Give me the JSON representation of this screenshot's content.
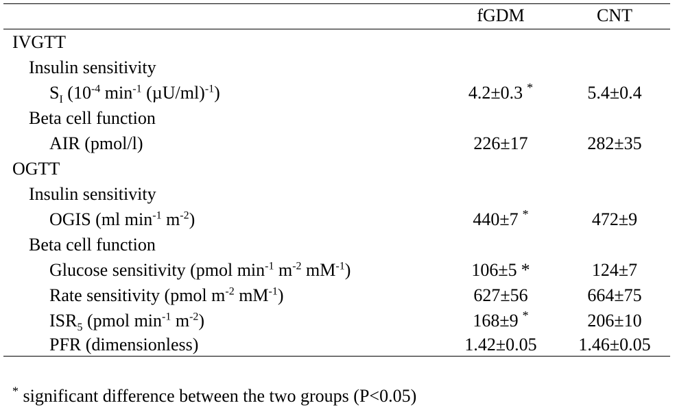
{
  "columns": {
    "col1": "fGDM",
    "col2": "CNT"
  },
  "rows": {
    "ivgtt": {
      "label": "IVGTT"
    },
    "ivgtt_ins": {
      "label": "Insulin sensitivity"
    },
    "si": {
      "label_main": "S",
      "label_sub": "I",
      "label_a": " (10",
      "label_sup1": "-4",
      "label_b": " min",
      "label_sup2": "-1",
      "label_c": " (µU/ml)",
      "label_sup3": "-1",
      "label_d": ")",
      "v1": "4.2±0.3",
      "mark1": "*",
      "v2": "5.4±0.4"
    },
    "ivgtt_beta": {
      "label": "Beta cell function"
    },
    "air": {
      "label": "AIR (pmol/l)",
      "v1": "226±17",
      "v2": "282±35"
    },
    "ogtt": {
      "label": "OGTT"
    },
    "ogtt_ins": {
      "label": "Insulin sensitivity"
    },
    "ogis": {
      "label_a": "OGIS (ml min",
      "label_sup1": "-1",
      "label_b": " m",
      "label_sup2": "-2",
      "label_c": ")",
      "v1": "440±7",
      "mark1": "*",
      "v2": "472±9"
    },
    "ogtt_beta": {
      "label": "Beta cell function"
    },
    "glucose": {
      "label_a": "Glucose sensitivity (pmol min",
      "label_sup1": "-1",
      "label_b": " m",
      "label_sup2": "-2",
      "label_c": " mM",
      "label_sup3": "-1",
      "label_d": ")",
      "v1": "106±5",
      "mark1": "*",
      "v2": "124±7"
    },
    "rate": {
      "label_a": "Rate sensitivity (pmol m",
      "label_sup1": "-2",
      "label_b": " mM",
      "label_sup2": "-1",
      "label_c": ")",
      "v1": "627±56",
      "v2": "664±75"
    },
    "isr": {
      "label_main": "ISR",
      "label_sub": "5",
      "label_a": " (pmol min",
      "label_sup1": "-1",
      "label_b": " m",
      "label_sup2": "-2",
      "label_c": ")",
      "v1": "168±9",
      "mark1": "*",
      "v2": "206±10"
    },
    "pfr": {
      "label": "PFR (dimensionless)",
      "v1": "1.42±0.05",
      "v2": "1.46±0.05"
    }
  },
  "footnote": {
    "mark": "*",
    "text": " significant difference between the two groups (P<0.05)"
  }
}
